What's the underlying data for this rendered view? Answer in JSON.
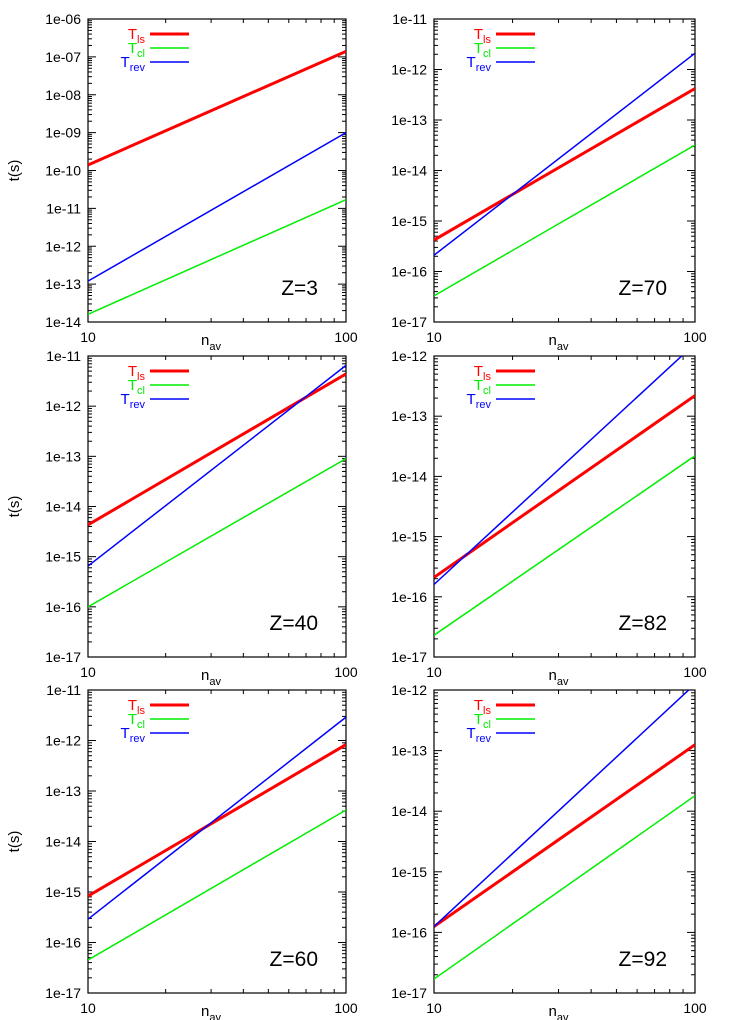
{
  "chart_data": [
    {
      "type": "line",
      "annotation": "Z=3",
      "log_x": true,
      "log_y": true,
      "xlabel": {
        "main": "n",
        "sub": "av"
      },
      "ylabel": "t(s)",
      "xlim": [
        10,
        100
      ],
      "xticks": [
        "10",
        "100"
      ],
      "ylim": [
        1e-14,
        1e-06
      ],
      "yticks": [
        "1e-14",
        "1e-13",
        "1e-12",
        "1e-11",
        "1e-10",
        "1e-09",
        "1e-08",
        "1e-07",
        "1e-06"
      ],
      "legend_position": "top-left",
      "series": [
        {
          "label_main": "T",
          "label_sub": "ls",
          "color": "#ff0000",
          "width": 3,
          "x": [
            10,
            100
          ],
          "y": [
            1.4e-10,
            1.4e-07
          ]
        },
        {
          "label_main": "T",
          "label_sub": "cl",
          "color": "#00ee00",
          "width": 1.5,
          "x": [
            10,
            100
          ],
          "y": [
            1.6e-14,
            1.7e-11
          ]
        },
        {
          "label_main": "T",
          "label_sub": "rev",
          "color": "#0000ff",
          "width": 1.5,
          "x": [
            10,
            100
          ],
          "y": [
            1.2e-13,
            1e-09
          ]
        }
      ]
    },
    {
      "type": "line",
      "annotation": "Z=70",
      "log_x": true,
      "log_y": true,
      "xlabel": {
        "main": "n",
        "sub": "av"
      },
      "ylabel": "",
      "xlim": [
        10,
        100
      ],
      "xticks": [
        "10",
        "100"
      ],
      "ylim": [
        1e-17,
        1e-11
      ],
      "yticks": [
        "1e-17",
        "1e-16",
        "1e-15",
        "1e-14",
        "1e-13",
        "1e-12",
        "1e-11"
      ],
      "legend_position": "top-left",
      "series": [
        {
          "label_main": "T",
          "label_sub": "ls",
          "color": "#ff0000",
          "width": 3,
          "x": [
            10,
            100
          ],
          "y": [
            4.2e-16,
            4.2e-13
          ]
        },
        {
          "label_main": "T",
          "label_sub": "cl",
          "color": "#00ee00",
          "width": 1.5,
          "x": [
            10,
            100
          ],
          "y": [
            3.3e-17,
            3.2e-14
          ]
        },
        {
          "label_main": "T",
          "label_sub": "rev",
          "color": "#0000ff",
          "width": 1.5,
          "x": [
            10,
            100
          ],
          "y": [
            2.1e-16,
            2.1e-12
          ]
        }
      ]
    },
    {
      "type": "line",
      "annotation": "Z=40",
      "log_x": true,
      "log_y": true,
      "xlabel": {
        "main": "n",
        "sub": "av"
      },
      "ylabel": "t(s)",
      "xlim": [
        10,
        100
      ],
      "xticks": [
        "10",
        "100"
      ],
      "ylim": [
        1e-17,
        1e-11
      ],
      "yticks": [
        "1e-17",
        "1e-16",
        "1e-15",
        "1e-14",
        "1e-13",
        "1e-12",
        "1e-11"
      ],
      "legend_position": "top-left",
      "series": [
        {
          "label_main": "T",
          "label_sub": "ls",
          "color": "#ff0000",
          "width": 3,
          "x": [
            10,
            100
          ],
          "y": [
            4.3e-15,
            4.4e-12
          ]
        },
        {
          "label_main": "T",
          "label_sub": "cl",
          "color": "#00ee00",
          "width": 1.5,
          "x": [
            10,
            100
          ],
          "y": [
            1e-16,
            9e-14
          ]
        },
        {
          "label_main": "T",
          "label_sub": "rev",
          "color": "#0000ff",
          "width": 1.5,
          "x": [
            10,
            100
          ],
          "y": [
            6.5e-16,
            6.5e-12
          ]
        }
      ]
    },
    {
      "type": "line",
      "annotation": "Z=82",
      "log_x": true,
      "log_y": true,
      "xlabel": {
        "main": "n",
        "sub": "av"
      },
      "ylabel": "",
      "xlim": [
        10,
        100
      ],
      "xticks": [
        "10",
        "100"
      ],
      "ylim": [
        1e-17,
        1e-12
      ],
      "yticks": [
        "1e-17",
        "1e-16",
        "1e-15",
        "1e-14",
        "1e-13",
        "1e-12"
      ],
      "legend_position": "top-left",
      "series": [
        {
          "label_main": "T",
          "label_sub": "ls",
          "color": "#ff0000",
          "width": 3,
          "x": [
            10,
            100
          ],
          "y": [
            2.1e-16,
            2.2e-13
          ]
        },
        {
          "label_main": "T",
          "label_sub": "cl",
          "color": "#00ee00",
          "width": 1.5,
          "x": [
            10,
            100
          ],
          "y": [
            2.3e-17,
            2.2e-14
          ]
        },
        {
          "label_main": "T",
          "label_sub": "rev",
          "color": "#0000ff",
          "width": 1.5,
          "x": [
            10,
            100
          ],
          "y": [
            1.6e-16,
            1.6e-12
          ]
        }
      ]
    },
    {
      "type": "line",
      "annotation": "Z=60",
      "log_x": true,
      "log_y": true,
      "xlabel": {
        "main": "n",
        "sub": "av"
      },
      "ylabel": "t(s)",
      "xlim": [
        10,
        100
      ],
      "xticks": [
        "10",
        "100"
      ],
      "ylim": [
        1e-17,
        1e-11
      ],
      "yticks": [
        "1e-17",
        "1e-16",
        "1e-15",
        "1e-14",
        "1e-13",
        "1e-12",
        "1e-11"
      ],
      "legend_position": "top-left",
      "series": [
        {
          "label_main": "T",
          "label_sub": "ls",
          "color": "#ff0000",
          "width": 3,
          "x": [
            10,
            100
          ],
          "y": [
            8.3e-16,
            8.3e-13
          ]
        },
        {
          "label_main": "T",
          "label_sub": "cl",
          "color": "#00ee00",
          "width": 1.5,
          "x": [
            10,
            100
          ],
          "y": [
            4.5e-17,
            4.2e-14
          ]
        },
        {
          "label_main": "T",
          "label_sub": "rev",
          "color": "#0000ff",
          "width": 1.5,
          "x": [
            10,
            100
          ],
          "y": [
            2.9e-16,
            2.9e-12
          ]
        }
      ]
    },
    {
      "type": "line",
      "annotation": "Z=92",
      "log_x": true,
      "log_y": true,
      "xlabel": {
        "main": "n",
        "sub": "av"
      },
      "ylabel": "",
      "xlim": [
        10,
        100
      ],
      "xticks": [
        "10",
        "100"
      ],
      "ylim": [
        1e-17,
        1e-12
      ],
      "yticks": [
        "1e-17",
        "1e-16",
        "1e-15",
        "1e-14",
        "1e-13",
        "1e-12"
      ],
      "legend_position": "top-left",
      "series": [
        {
          "label_main": "T",
          "label_sub": "ls",
          "color": "#ff0000",
          "width": 3,
          "x": [
            10,
            100
          ],
          "y": [
            1.25e-16,
            1.25e-13
          ]
        },
        {
          "label_main": "T",
          "label_sub": "cl",
          "color": "#00ee00",
          "width": 1.5,
          "x": [
            10,
            100
          ],
          "y": [
            1.7e-17,
            1.8e-14
          ]
        },
        {
          "label_main": "T",
          "label_sub": "rev",
          "color": "#0000ff",
          "width": 1.5,
          "x": [
            10,
            100
          ],
          "y": [
            1.25e-16,
            1.25e-12
          ]
        }
      ]
    }
  ]
}
